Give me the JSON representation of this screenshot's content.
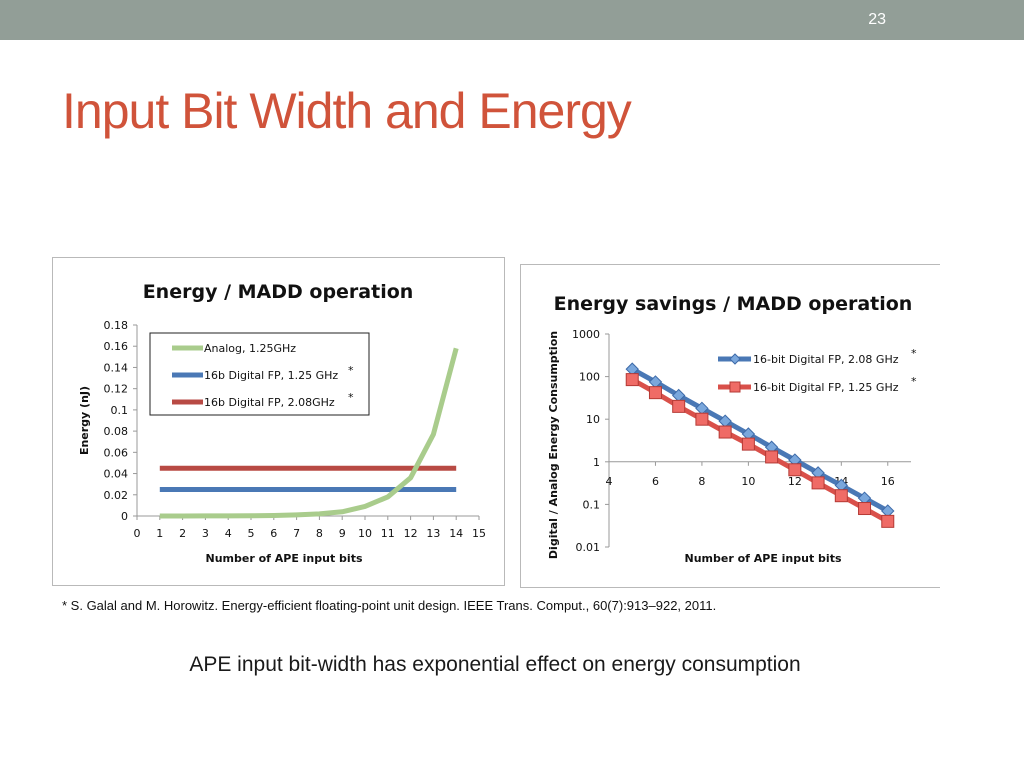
{
  "slide": {
    "number": "23",
    "title": "Input Bit Width and Energy",
    "footnote": "* S. Galal and M. Horowitz. Energy-efficient floating-point unit design. IEEE Trans. Comput., 60(7):913–922, 2011.",
    "caption": "APE input bit-width has exponential effect on energy consumption"
  },
  "chart_data": [
    {
      "type": "line",
      "title": "Energy / MADD operation",
      "xlabel": "Number of APE input bits",
      "ylabel": "Energy (nJ)",
      "xlim": [
        0,
        15
      ],
      "ylim": [
        0,
        0.18
      ],
      "x_ticks": [
        "0",
        "1",
        "2",
        "3",
        "4",
        "5",
        "6",
        "7",
        "8",
        "9",
        "10",
        "11",
        "12",
        "13",
        "14",
        "15"
      ],
      "y_ticks": [
        "0",
        "0.02",
        "0.04",
        "0.06",
        "0.08",
        "0.1",
        "0.12",
        "0.14",
        "0.16",
        "0.18"
      ],
      "grid": false,
      "legend_position": "top-left",
      "series": [
        {
          "name": "Analog, 1.25GHz",
          "mark": "",
          "color": "#a9cc8c",
          "x": [
            1,
            2,
            3,
            4,
            5,
            6,
            7,
            8,
            9,
            10,
            11,
            12,
            13,
            14
          ],
          "values": [
            1e-05,
            2e-05,
            5e-05,
            0.0001,
            0.0002,
            0.0005,
            0.001,
            0.002,
            0.004,
            0.009,
            0.018,
            0.036,
            0.077,
            0.158
          ]
        },
        {
          "name": "16b Digital FP, 1.25 GHz",
          "mark": "*",
          "color": "#4a78b5",
          "x": [
            1,
            14
          ],
          "values": [
            0.025,
            0.025
          ]
        },
        {
          "name": "16b Digital FP, 2.08GHz",
          "mark": "*",
          "color": "#b84a44",
          "x": [
            1,
            14
          ],
          "values": [
            0.045,
            0.045
          ]
        }
      ]
    },
    {
      "type": "line",
      "title": "Energy savings / MADD operation",
      "xlabel": "Number of APE input bits",
      "ylabel": "Digital / Analog Energy Consumption",
      "yscale": "log",
      "xlim": [
        4,
        17
      ],
      "ylim": [
        0.01,
        1000
      ],
      "x_ticks": [
        "4",
        "6",
        "8",
        "10",
        "12",
        "14",
        "16"
      ],
      "y_ticks": [
        "0.01",
        "0.1",
        "1",
        "10",
        "100",
        "1000"
      ],
      "grid": false,
      "legend_position": "top-right",
      "series": [
        {
          "name": "16-bit Digital FP, 2.08 GHz",
          "mark": "*",
          "color": "#4a78b5",
          "marker": "diamond",
          "x": [
            5,
            6,
            7,
            8,
            9,
            10,
            11,
            12,
            13,
            14,
            15,
            16
          ],
          "values": [
            150,
            75,
            36,
            18,
            9,
            4.5,
            2.2,
            1.1,
            0.55,
            0.28,
            0.14,
            0.07
          ]
        },
        {
          "name": "16-bit Digital FP, 1.25 GHz",
          "mark": "*",
          "color": "#d9504a",
          "marker": "square",
          "x": [
            5,
            6,
            7,
            8,
            9,
            10,
            11,
            12,
            13,
            14,
            15,
            16
          ],
          "values": [
            85,
            42,
            20,
            10,
            5,
            2.6,
            1.3,
            0.65,
            0.32,
            0.16,
            0.08,
            0.04
          ]
        }
      ]
    }
  ]
}
